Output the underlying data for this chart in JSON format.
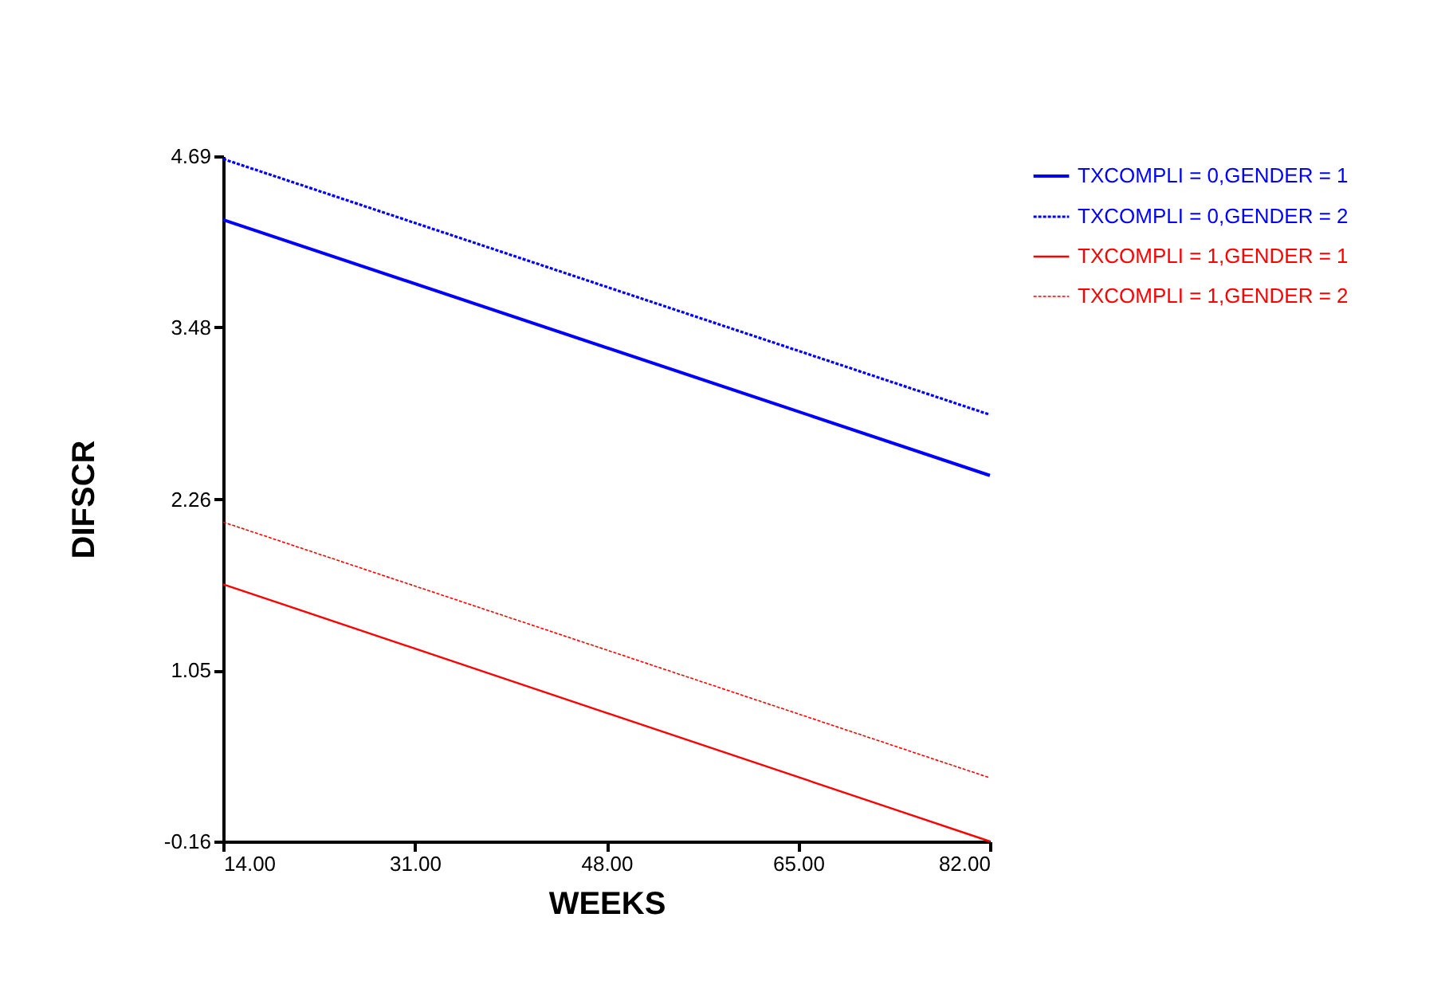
{
  "chart_data": {
    "type": "line",
    "xlabel": "WEEKS",
    "ylabel": "DIFSCR",
    "x": [
      14,
      82
    ],
    "series": [
      {
        "name": "TXCOMPLI = 0,GENDER = 1",
        "color": "#0000ff",
        "values": [
          4.24,
          2.43
        ],
        "line_style": "solid"
      },
      {
        "name": "TXCOMPLI = 0,GENDER = 2",
        "color": "#0000ff",
        "values": [
          4.67,
          2.86
        ],
        "line_style": "dotted"
      },
      {
        "name": "TXCOMPLI = 1,GENDER = 1",
        "color": "#ff0000",
        "values": [
          1.66,
          -0.16
        ],
        "line_style": "solid"
      },
      {
        "name": "TXCOMPLI = 1,GENDER = 2",
        "color": "#ff0000",
        "values": [
          2.1,
          0.29
        ],
        "line_style": "dotted"
      }
    ],
    "xlim": [
      14,
      82
    ],
    "xticks": [
      {
        "value": 14,
        "label": "14.00"
      },
      {
        "value": 31,
        "label": "31.00"
      },
      {
        "value": 48,
        "label": "48.00"
      },
      {
        "value": 65,
        "label": "65.00"
      },
      {
        "value": 82,
        "label": "82.00"
      }
    ],
    "ylim": [
      -0.16,
      4.69
    ],
    "yticks": [
      -0.16,
      1.05,
      2.26,
      3.48,
      4.69
    ],
    "grid": false,
    "legend": "top right",
    "marker": "none"
  }
}
